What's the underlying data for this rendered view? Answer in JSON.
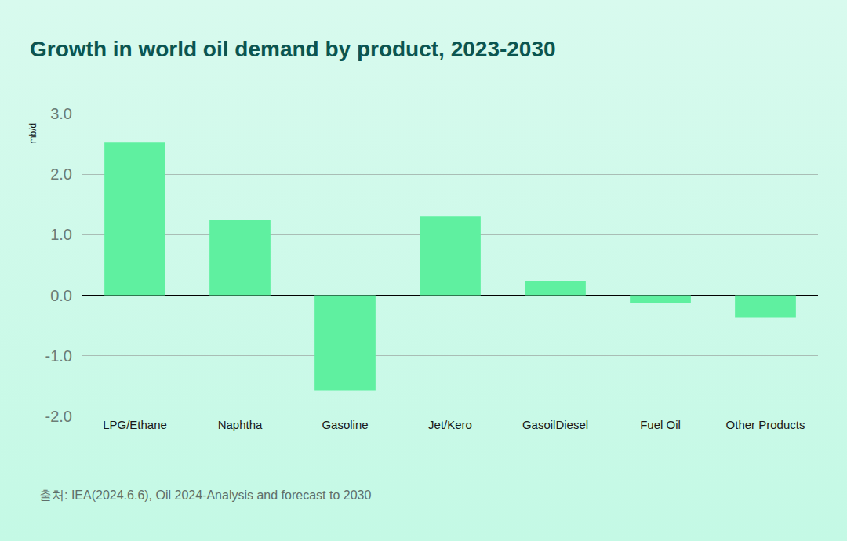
{
  "chart_data": {
    "type": "bar",
    "title": "Growth in world oil demand by product, 2023-2030",
    "y_label": "mb/d",
    "categories": [
      "LPG/Ethane",
      "Naphtha",
      "Gasoline",
      "Jet/Kero",
      "GasoilDiesel",
      "Fuel Oil",
      "Other Products"
    ],
    "values": [
      2.53,
      1.24,
      -1.58,
      1.3,
      0.23,
      -0.13,
      -0.36
    ],
    "color": "#5ff0a0",
    "ylim": [
      -2,
      3
    ],
    "yticks": [
      {
        "value": -2,
        "label": "-2.0"
      },
      {
        "value": -1,
        "label": "-1.0"
      },
      {
        "value": 0,
        "label": "0.0"
      },
      {
        "value": 1,
        "label": "1.0"
      },
      {
        "value": 2,
        "label": "2.0"
      },
      {
        "value": 3,
        "label": "3.0"
      }
    ],
    "grid": true,
    "annotations": [
      "출처: IEA(2024.6.6), Oil 2024-Analysis and forecast to 2030"
    ]
  }
}
